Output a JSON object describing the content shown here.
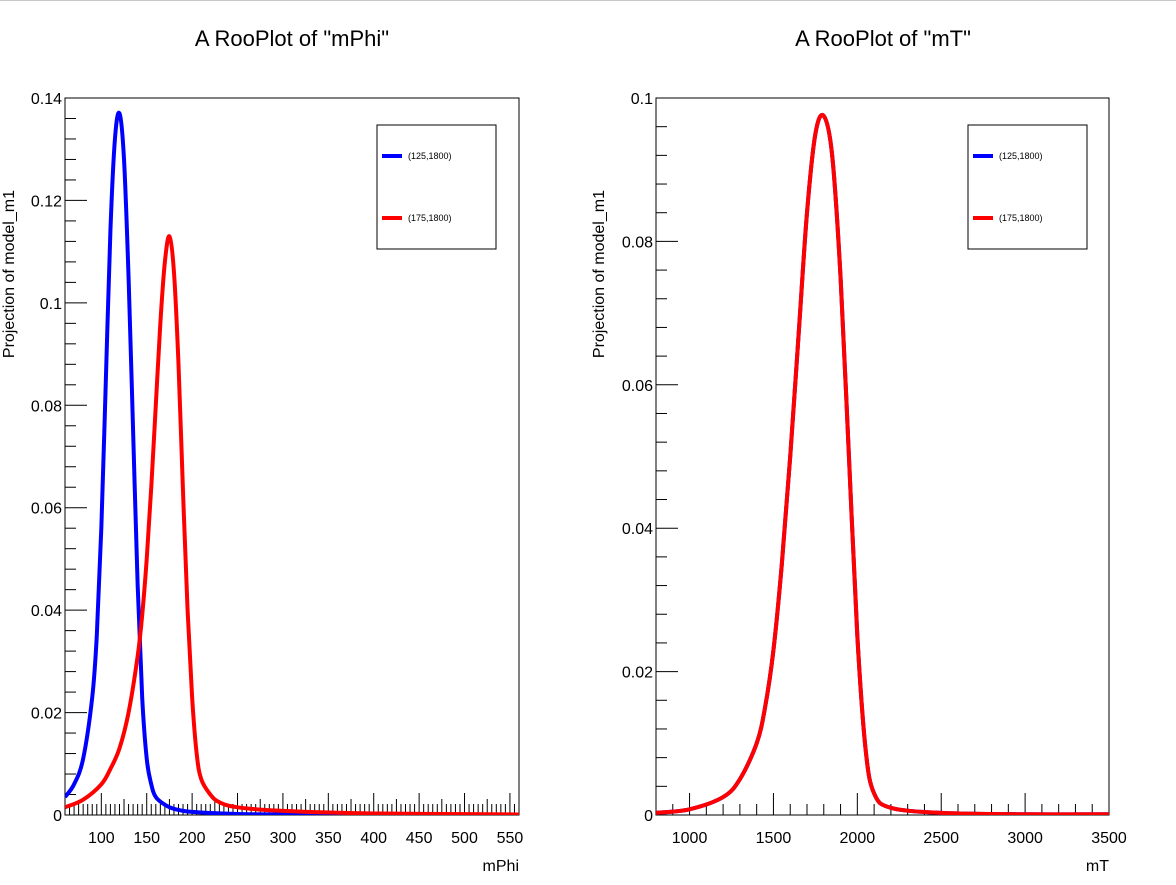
{
  "chart_data": [
    {
      "type": "line",
      "title": "A RooPlot of \"mPhi\"",
      "xlabel": "mPhi",
      "ylabel": "Projection of model_m1",
      "xlim": [
        60,
        560
      ],
      "ylim": [
        0,
        0.14
      ],
      "x_ticks": [
        100,
        150,
        200,
        250,
        300,
        350,
        400,
        450,
        500,
        550
      ],
      "y_ticks": [
        0,
        0.02,
        0.04,
        0.06,
        0.08,
        0.1,
        0.12,
        0.14
      ],
      "y_tick_labels": [
        "0",
        "0.02",
        "0.04",
        "0.06",
        "0.08",
        "0.1",
        "0.12",
        "0.14"
      ],
      "grid": false,
      "legend_position": "top-right",
      "series": [
        {
          "name": "(125,1800)",
          "color": "#0000ff",
          "x": [
            60,
            70,
            80,
            90,
            95,
            100,
            105,
            110,
            115,
            120,
            125,
            130,
            135,
            140,
            145,
            150,
            155,
            160,
            170,
            180,
            200,
            250,
            300,
            400,
            560
          ],
          "y": [
            0.0035,
            0.006,
            0.011,
            0.023,
            0.035,
            0.056,
            0.085,
            0.114,
            0.132,
            0.137,
            0.128,
            0.105,
            0.075,
            0.045,
            0.023,
            0.011,
            0.006,
            0.0035,
            0.002,
            0.0012,
            0.0006,
            0.0002,
            0.0001,
            0.0001,
            0.0001
          ]
        },
        {
          "name": "(175,1800)",
          "color": "#ff0000",
          "x": [
            60,
            80,
            100,
            110,
            120,
            130,
            140,
            145,
            150,
            155,
            160,
            165,
            170,
            175,
            180,
            185,
            190,
            195,
            200,
            205,
            210,
            220,
            230,
            250,
            300,
            400,
            560
          ],
          "y": [
            0.0015,
            0.003,
            0.006,
            0.009,
            0.013,
            0.02,
            0.031,
            0.039,
            0.05,
            0.064,
            0.08,
            0.096,
            0.108,
            0.113,
            0.106,
            0.088,
            0.063,
            0.04,
            0.023,
            0.012,
            0.007,
            0.004,
            0.0025,
            0.0015,
            0.0008,
            0.0003,
            0.0001
          ]
        }
      ]
    },
    {
      "type": "line",
      "title": "A RooPlot of \"mT\"",
      "xlabel": "mT",
      "ylabel": "Projection of model_m1",
      "xlim": [
        800,
        3500
      ],
      "ylim": [
        0,
        0.1
      ],
      "x_ticks": [
        1000,
        1500,
        2000,
        2500,
        3000,
        3500
      ],
      "y_ticks": [
        0,
        0.02,
        0.04,
        0.06,
        0.08,
        0.1
      ],
      "y_tick_labels": [
        "0",
        "0.02",
        "0.04",
        "0.06",
        "0.08",
        "0.1"
      ],
      "grid": false,
      "legend_position": "top-right",
      "series": [
        {
          "name": "(125,1800)",
          "color": "#0000ff",
          "x": [
            800,
            1000,
            1200,
            1300,
            1400,
            1450,
            1500,
            1550,
            1600,
            1650,
            1700,
            1750,
            1800,
            1850,
            1900,
            1950,
            2000,
            2050,
            2100,
            2200,
            2500,
            3000,
            3500
          ],
          "y": [
            0.0003,
            0.0008,
            0.0025,
            0.005,
            0.01,
            0.015,
            0.023,
            0.035,
            0.05,
            0.067,
            0.084,
            0.095,
            0.0975,
            0.092,
            0.075,
            0.05,
            0.025,
            0.009,
            0.003,
            0.001,
            0.0003,
            0.0001,
            0.0001
          ]
        },
        {
          "name": "(175,1800)",
          "color": "#ff0000",
          "x": [
            800,
            1000,
            1200,
            1300,
            1400,
            1450,
            1500,
            1550,
            1600,
            1650,
            1700,
            1750,
            1800,
            1850,
            1900,
            1950,
            2000,
            2050,
            2100,
            2200,
            2500,
            3000,
            3500
          ],
          "y": [
            0.0003,
            0.0008,
            0.0025,
            0.005,
            0.01,
            0.015,
            0.023,
            0.035,
            0.05,
            0.067,
            0.084,
            0.095,
            0.0975,
            0.092,
            0.075,
            0.05,
            0.025,
            0.009,
            0.003,
            0.001,
            0.0003,
            0.0001,
            0.0001
          ]
        }
      ]
    }
  ]
}
